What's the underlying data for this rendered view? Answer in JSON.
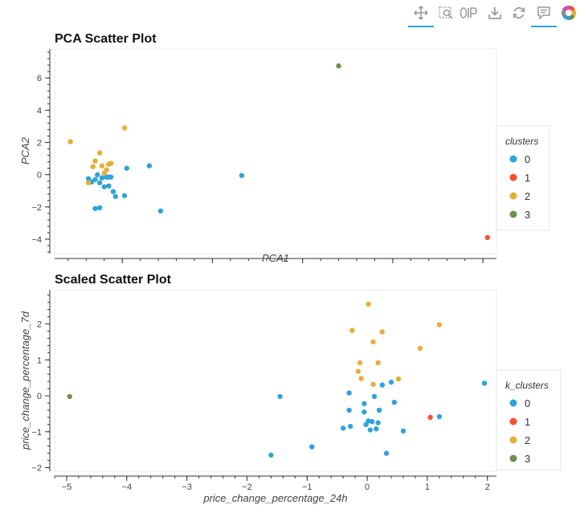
{
  "toolbar": {
    "tools": [
      {
        "icon": "pan-icon",
        "active": true
      },
      {
        "icon": "box-zoom-icon",
        "active": false
      },
      {
        "icon": "wheel-zoom-icon",
        "active": false
      },
      {
        "icon": "save-icon",
        "active": false
      },
      {
        "icon": "reset-icon",
        "active": false
      },
      {
        "icon": "hover-icon",
        "active": true
      },
      {
        "icon": "bokeh-logo-icon",
        "active": false
      }
    ]
  },
  "colors": {
    "0": "#30a2da",
    "1": "#fc4f30",
    "2": "#e5ae38",
    "3": "#6d904f"
  },
  "chart_data": [
    {
      "type": "scatter",
      "title": "PCA Scatter Plot",
      "xlabel": "PCA1",
      "ylabel": "PCA2",
      "xlim": [
        -1.5,
        8.3
      ],
      "ylim": [
        -4.9,
        7.8
      ],
      "xticks": [
        0,
        2,
        4,
        6,
        8
      ],
      "yticks": [
        -4,
        -2,
        0,
        2,
        4,
        6
      ],
      "legend": {
        "title": "clusters",
        "position": "right",
        "entries": [
          "0",
          "1",
          "2",
          "3"
        ]
      },
      "series": [
        {
          "name": "0",
          "color": "#30a2da",
          "points": [
            [
              -0.75,
              -0.25
            ],
            [
              -0.68,
              -0.45
            ],
            [
              -0.6,
              -0.3
            ],
            [
              -0.55,
              0.0
            ],
            [
              -0.5,
              -0.5
            ],
            [
              -0.45,
              -0.2
            ],
            [
              -0.4,
              -0.75
            ],
            [
              -0.35,
              -0.15
            ],
            [
              -0.3,
              -0.15
            ],
            [
              -0.3,
              -0.7
            ],
            [
              -0.25,
              -0.15
            ],
            [
              -0.2,
              -1.05
            ],
            [
              -0.15,
              -1.35
            ],
            [
              -0.5,
              -2.05
            ],
            [
              -0.6,
              -2.1
            ],
            [
              0.1,
              0.4
            ],
            [
              0.05,
              -1.3
            ],
            [
              0.6,
              0.55
            ],
            [
              0.85,
              -2.25
            ],
            [
              2.65,
              -0.05
            ]
          ]
        },
        {
          "name": "1",
          "color": "#fc4f30",
          "points": [
            [
              8.1,
              -3.9
            ]
          ]
        },
        {
          "name": "2",
          "color": "#e5ae38",
          "points": [
            [
              -1.15,
              2.05
            ],
            [
              0.05,
              2.9
            ],
            [
              -0.5,
              1.35
            ],
            [
              -0.6,
              0.85
            ],
            [
              -0.45,
              0.55
            ],
            [
              -0.3,
              0.65
            ],
            [
              -0.35,
              0.3
            ],
            [
              -0.65,
              0.5
            ],
            [
              -0.75,
              -0.5
            ],
            [
              -0.4,
              0.1
            ],
            [
              -0.25,
              0.7
            ]
          ]
        },
        {
          "name": "3",
          "color": "#6d904f",
          "points": [
            [
              4.8,
              6.75
            ]
          ]
        }
      ]
    },
    {
      "type": "scatter",
      "title": "Scaled Scatter Plot",
      "xlabel": "price_change_percentage_24h",
      "ylabel": "price_change_percentage_7d",
      "xlim": [
        -5.2,
        2.15
      ],
      "ylim": [
        -2.1,
        2.95
      ],
      "xticks": [
        -5,
        -4,
        -3,
        -2,
        -1,
        0,
        1,
        2
      ],
      "yticks": [
        -2,
        -1,
        0,
        1,
        2
      ],
      "legend": {
        "title": "k_clusters",
        "position": "right",
        "entries": [
          "0",
          "1",
          "2",
          "3"
        ]
      },
      "series": [
        {
          "name": "0",
          "color": "#30a2da",
          "points": [
            [
              -1.6,
              -1.65
            ],
            [
              -1.45,
              -0.02
            ],
            [
              -0.92,
              -1.42
            ],
            [
              -0.4,
              -0.9
            ],
            [
              -0.28,
              -0.85
            ],
            [
              -0.3,
              -0.4
            ],
            [
              -0.3,
              0.08
            ],
            [
              -0.05,
              -0.22
            ],
            [
              -0.05,
              -0.45
            ],
            [
              -0.02,
              -0.8
            ],
            [
              0.02,
              -0.7
            ],
            [
              0.05,
              -0.95
            ],
            [
              0.08,
              -0.72
            ],
            [
              0.12,
              -0.02
            ],
            [
              0.15,
              -0.92
            ],
            [
              0.18,
              -0.75
            ],
            [
              0.2,
              -0.4
            ],
            [
              0.25,
              0.3
            ],
            [
              0.32,
              -1.6
            ],
            [
              0.4,
              0.38
            ],
            [
              0.45,
              -0.18
            ],
            [
              0.6,
              -0.98
            ],
            [
              1.2,
              -0.58
            ],
            [
              1.95,
              0.35
            ]
          ]
        },
        {
          "name": "1",
          "color": "#fc4f30",
          "points": [
            [
              1.05,
              -0.6
            ]
          ]
        },
        {
          "name": "2",
          "color": "#e5ae38",
          "points": [
            [
              0.02,
              2.55
            ],
            [
              -0.25,
              1.82
            ],
            [
              0.1,
              1.5
            ],
            [
              0.25,
              1.78
            ],
            [
              -0.12,
              0.92
            ],
            [
              0.18,
              0.92
            ],
            [
              -0.15,
              0.68
            ],
            [
              -0.1,
              0.48
            ],
            [
              0.1,
              0.32
            ],
            [
              0.52,
              0.47
            ],
            [
              0.88,
              1.32
            ],
            [
              1.2,
              1.98
            ]
          ]
        },
        {
          "name": "3",
          "color": "#6d904f",
          "points": [
            [
              -4.95,
              -0.02
            ]
          ]
        }
      ]
    }
  ]
}
